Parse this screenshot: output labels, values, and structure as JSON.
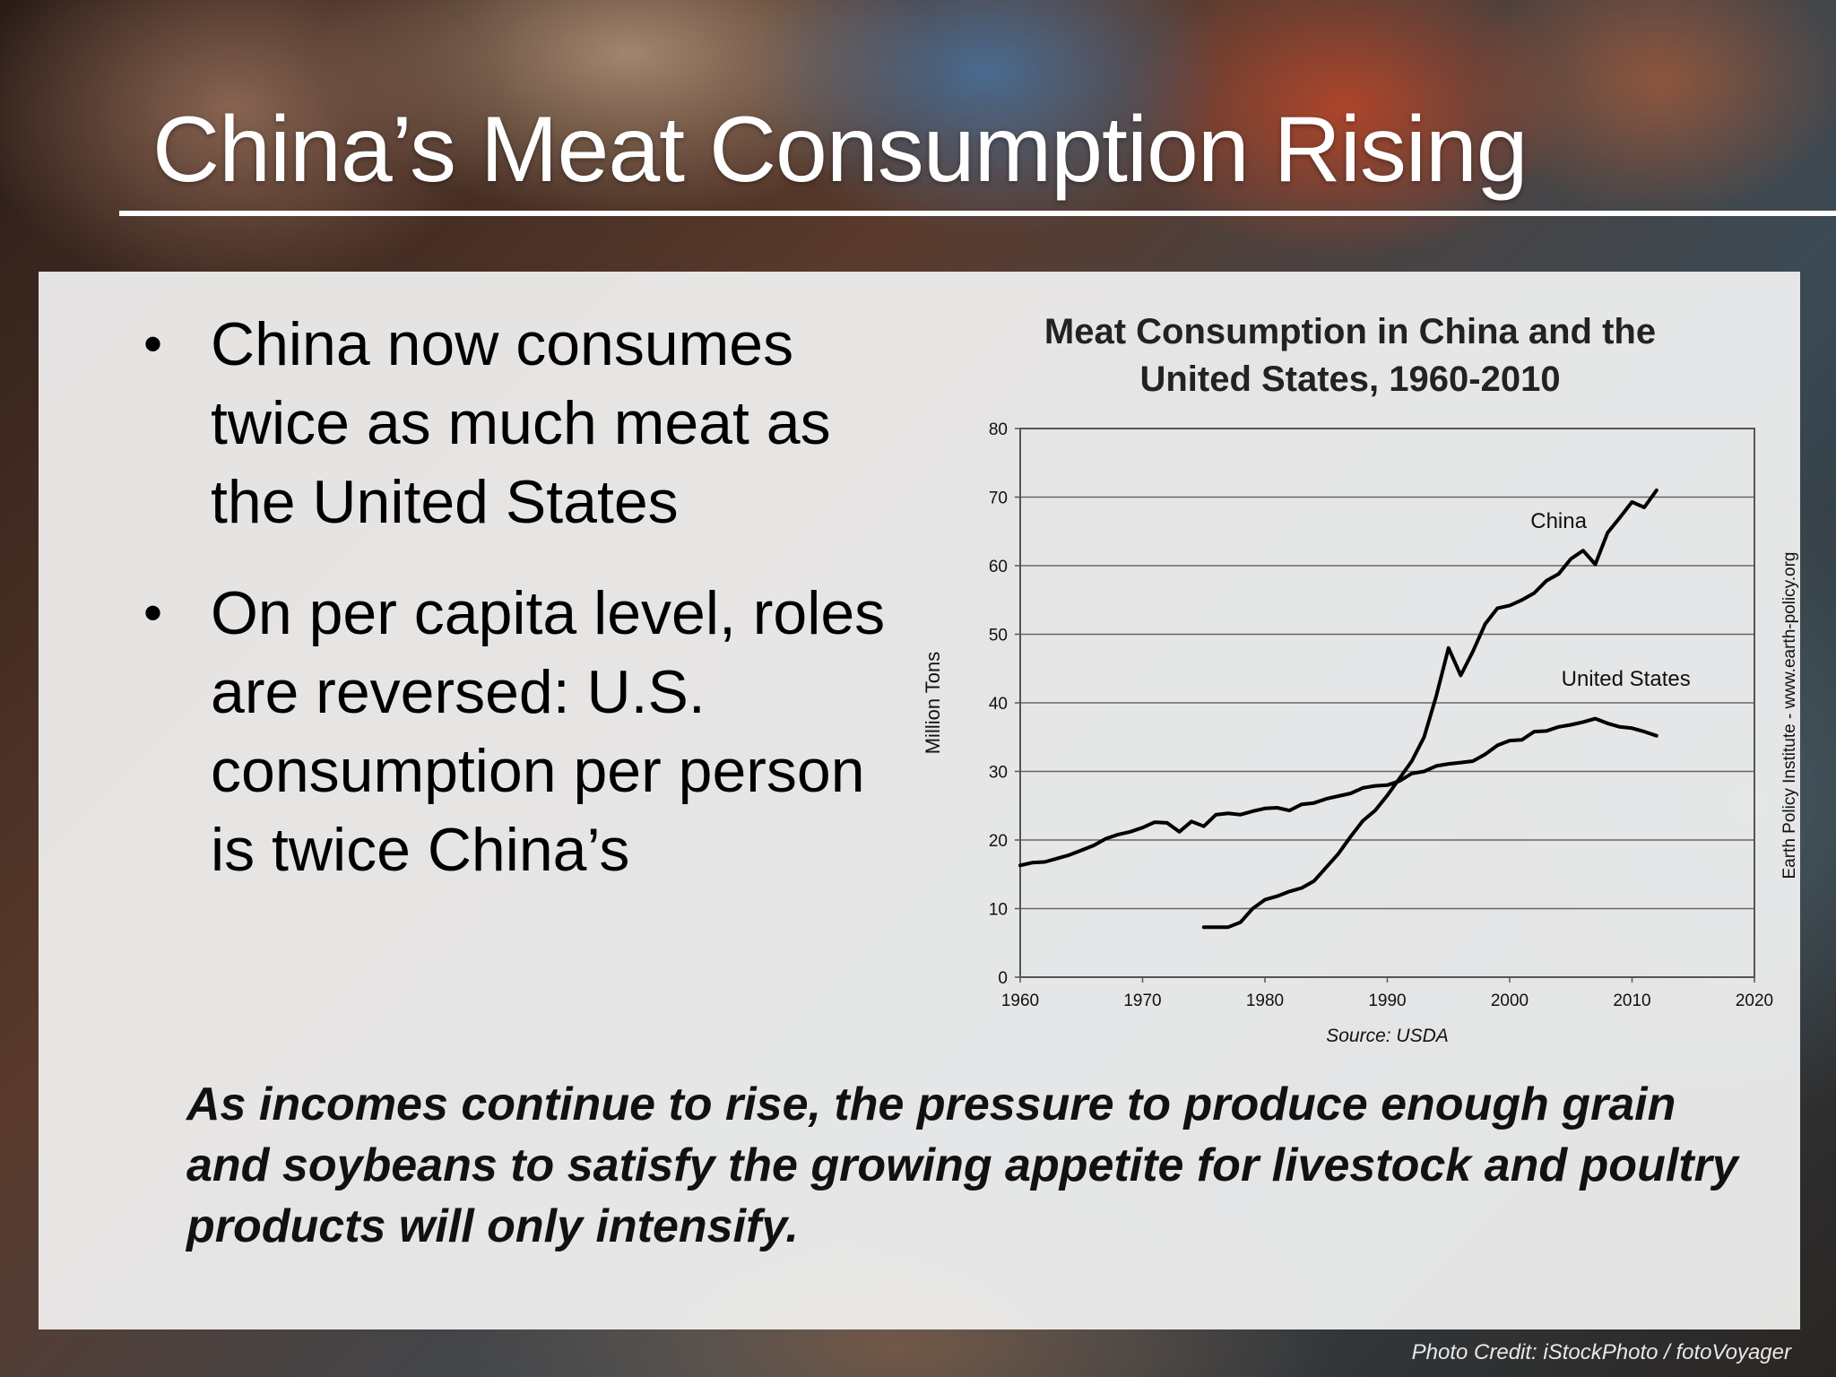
{
  "slide": {
    "title": "China’s Meat Consumption Rising",
    "bullets": [
      "China now consumes twice as much meat as the United States",
      "On per capita level, roles are reversed: U.S. consumption per person is twice China’s"
    ],
    "bullet_symbol": "•",
    "footnote": "As incomes continue to rise, the pressure to produce enough grain and soybeans to satisfy the growing appetite for livestock and poultry products will only intensify.",
    "photo_credit": "Photo Credit: iStockPhoto / fotoVoyager"
  },
  "chart_data": {
    "type": "line",
    "title_lines": [
      "Meat Consumption in China and the",
      "United States, 1960-2010"
    ],
    "ylabel": "Million Tons",
    "source": "Source: USDA",
    "side_note": "Earth Policy Institute - www.earth-policy.org",
    "xlim": [
      1960,
      2020
    ],
    "ylim": [
      0,
      80
    ],
    "x_ticks": [
      1960,
      1970,
      1980,
      1990,
      2000,
      2010,
      2020
    ],
    "y_ticks": [
      0,
      10,
      20,
      30,
      40,
      50,
      60,
      70,
      80
    ],
    "grid": true,
    "series": [
      {
        "name": "China",
        "color": "#000000",
        "points": [
          [
            1975,
            7.3
          ],
          [
            1976,
            7.3
          ],
          [
            1977,
            7.3
          ],
          [
            1978,
            8
          ],
          [
            1979,
            10
          ],
          [
            1980,
            11.3
          ],
          [
            1981,
            11.8
          ],
          [
            1982,
            12.5
          ],
          [
            1983,
            13
          ],
          [
            1984,
            14
          ],
          [
            1985,
            16
          ],
          [
            1986,
            18
          ],
          [
            1987,
            20.5
          ],
          [
            1988,
            22.8
          ],
          [
            1989,
            24.3
          ],
          [
            1990,
            26.5
          ],
          [
            1991,
            29
          ],
          [
            1992,
            31.5
          ],
          [
            1993,
            35
          ],
          [
            1994,
            41
          ],
          [
            1995,
            48
          ],
          [
            1996,
            44
          ],
          [
            1997,
            47.5
          ],
          [
            1998,
            51.5
          ],
          [
            1999,
            53.8
          ],
          [
            2000,
            54.2
          ],
          [
            2001,
            55
          ],
          [
            2002,
            56
          ],
          [
            2003,
            57.8
          ],
          [
            2004,
            58.8
          ],
          [
            2005,
            61
          ],
          [
            2006,
            62.2
          ],
          [
            2007,
            60.2
          ],
          [
            2008,
            64.8
          ],
          [
            2009,
            67
          ],
          [
            2010,
            69.3
          ],
          [
            2011,
            68.5
          ],
          [
            2012,
            71
          ]
        ]
      },
      {
        "name": "United States",
        "color": "#000000",
        "points": [
          [
            1960,
            16.3
          ],
          [
            1961,
            16.7
          ],
          [
            1962,
            16.8
          ],
          [
            1963,
            17.3
          ],
          [
            1964,
            17.8
          ],
          [
            1965,
            18.5
          ],
          [
            1966,
            19.2
          ],
          [
            1967,
            20.2
          ],
          [
            1968,
            20.8
          ],
          [
            1969,
            21.2
          ],
          [
            1970,
            21.8
          ],
          [
            1971,
            22.6
          ],
          [
            1972,
            22.5
          ],
          [
            1973,
            21.2
          ],
          [
            1974,
            22.7
          ],
          [
            1975,
            22
          ],
          [
            1976,
            23.7
          ],
          [
            1977,
            23.9
          ],
          [
            1978,
            23.7
          ],
          [
            1979,
            24.2
          ],
          [
            1980,
            24.6
          ],
          [
            1981,
            24.7
          ],
          [
            1982,
            24.3
          ],
          [
            1983,
            25.2
          ],
          [
            1984,
            25.4
          ],
          [
            1985,
            26
          ],
          [
            1986,
            26.4
          ],
          [
            1987,
            26.8
          ],
          [
            1988,
            27.6
          ],
          [
            1989,
            27.9
          ],
          [
            1990,
            28
          ],
          [
            1991,
            28.6
          ],
          [
            1992,
            29.7
          ],
          [
            1993,
            30
          ],
          [
            1994,
            30.8
          ],
          [
            1995,
            31.1
          ],
          [
            1996,
            31.3
          ],
          [
            1997,
            31.5
          ],
          [
            1998,
            32.5
          ],
          [
            1999,
            33.8
          ],
          [
            2000,
            34.5
          ],
          [
            2001,
            34.6
          ],
          [
            2002,
            35.8
          ],
          [
            2003,
            35.9
          ],
          [
            2004,
            36.5
          ],
          [
            2005,
            36.8
          ],
          [
            2006,
            37.2
          ],
          [
            2007,
            37.7
          ],
          [
            2008,
            37
          ],
          [
            2009,
            36.5
          ],
          [
            2010,
            36.3
          ],
          [
            2011,
            35.8
          ],
          [
            2012,
            35.2
          ]
        ]
      }
    ],
    "annotations": [
      {
        "text": "China",
        "x": 2004,
        "y": 65.5
      },
      {
        "text": "United States",
        "x": 2009.5,
        "y": 42.5
      }
    ]
  }
}
